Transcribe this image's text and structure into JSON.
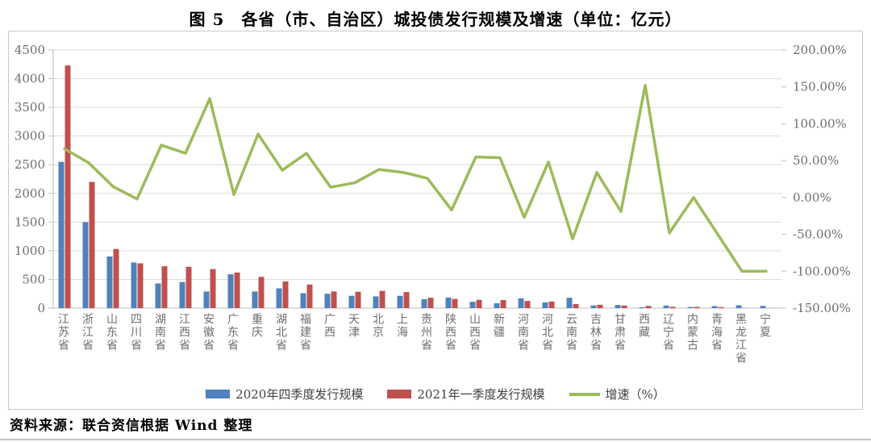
{
  "page": {
    "title": "图 5　各省（市、自治区）城投债发行规模及增速（单位：亿元）",
    "source": "资料来源：联合资信根据 Wind 整理"
  },
  "legend": {
    "items": [
      {
        "label": "2020年四季度发行规模",
        "type": "bar",
        "color": "#4F81BD"
      },
      {
        "label": "2021年一季度发行规模",
        "type": "bar",
        "color": "#C0504D"
      },
      {
        "label": "增速（%）",
        "type": "line",
        "color": "#9BBB59"
      }
    ]
  },
  "left_axis": {
    "tick_labels": [
      "4500",
      "4000",
      "3500",
      "3000",
      "2500",
      "2000",
      "1500",
      "1000",
      "500",
      "0"
    ],
    "min": 0,
    "max": 4500,
    "step": 500
  },
  "right_axis": {
    "tick_labels": [
      "200.00%",
      "150.00%",
      "100.00%",
      "50.00%",
      "0.00%",
      "-50.00%",
      "-100.00%",
      "-150.00%"
    ],
    "min": -150,
    "max": 200,
    "step": 50
  },
  "chart_data": {
    "type": "bar+line",
    "title": "图 5　各省（市、自治区）城投债发行规模及增速（单位：亿元）",
    "unit": "亿元",
    "grid": true,
    "legend_position": "bottom",
    "left_ylim": [
      0,
      4500
    ],
    "right_ylim": [
      -150,
      200
    ],
    "categories": [
      "江苏省",
      "浙江省",
      "山东省",
      "四川省",
      "湖南省",
      "江西省",
      "安徽省",
      "广东省",
      "重庆",
      "湖北省",
      "福建省",
      "广西",
      "天津",
      "北京",
      "上海",
      "贵州省",
      "陕西省",
      "山西省",
      "新疆",
      "河南省",
      "河北省",
      "云南省",
      "吉林省",
      "甘肃省",
      "西藏",
      "辽宁省",
      "内蒙古",
      "青海省",
      "黑龙江省",
      "宁夏"
    ],
    "series": [
      {
        "name": "2020年四季度发行规模",
        "type": "bar",
        "axis": "left",
        "color": "#4F81BD",
        "values": [
          2550,
          1500,
          900,
          795,
          430,
          455,
          290,
          590,
          290,
          345,
          260,
          250,
          215,
          205,
          215,
          155,
          185,
          110,
          85,
          170,
          100,
          180,
          45,
          55,
          15,
          45,
          20,
          35,
          50,
          38
        ]
      },
      {
        "name": "2021年一季度发行规模",
        "type": "bar",
        "axis": "left",
        "color": "#C0504D",
        "values": [
          4230,
          2200,
          1030,
          780,
          730,
          720,
          680,
          620,
          545,
          465,
          410,
          290,
          285,
          300,
          280,
          180,
          160,
          145,
          140,
          125,
          115,
          70,
          58,
          45,
          38,
          23,
          22,
          18,
          3,
          2
        ]
      },
      {
        "name": "增速（%）",
        "type": "line",
        "axis": "right",
        "color": "#9BBB59",
        "values": [
          66,
          47,
          15,
          -2,
          71,
          60,
          134,
          4,
          86,
          37,
          60,
          14,
          20,
          38,
          34,
          26,
          -17,
          55,
          54,
          -27,
          48,
          -56,
          34,
          -19,
          152,
          -48,
          0,
          -50,
          -100,
          -100
        ]
      }
    ]
  }
}
